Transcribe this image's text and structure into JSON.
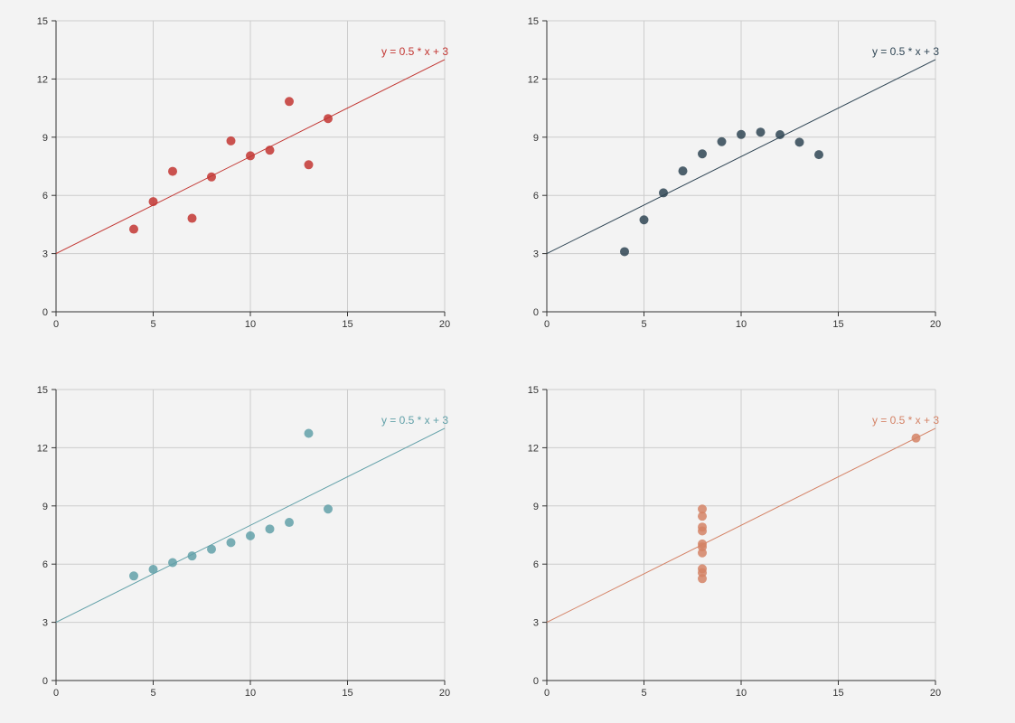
{
  "chart_data": [
    {
      "type": "scatter",
      "title": "",
      "xlabel": "",
      "ylabel": "",
      "xlim": [
        0,
        20
      ],
      "ylim": [
        0,
        15
      ],
      "xticks": [
        0,
        5,
        10,
        15,
        20
      ],
      "yticks": [
        0,
        3,
        6,
        9,
        12,
        15
      ],
      "grid": true,
      "color": "#c23531",
      "points": [
        [
          10,
          8.04
        ],
        [
          8,
          6.95
        ],
        [
          13,
          7.58
        ],
        [
          9,
          8.81
        ],
        [
          11,
          8.33
        ],
        [
          14,
          9.96
        ],
        [
          6,
          7.24
        ],
        [
          4,
          4.26
        ],
        [
          12,
          10.84
        ],
        [
          7,
          4.82
        ],
        [
          5,
          5.68
        ]
      ],
      "fit_line": {
        "slope": 0.5,
        "intercept": 3,
        "from": [
          0,
          3
        ],
        "to": [
          20,
          13
        ],
        "label": "y = 0.5 * x + 3"
      }
    },
    {
      "type": "scatter",
      "title": "",
      "xlabel": "",
      "ylabel": "",
      "xlim": [
        0,
        20
      ],
      "ylim": [
        0,
        15
      ],
      "xticks": [
        0,
        5,
        10,
        15,
        20
      ],
      "yticks": [
        0,
        3,
        6,
        9,
        12,
        15
      ],
      "grid": true,
      "color": "#2f4554",
      "points": [
        [
          10,
          9.14
        ],
        [
          8,
          8.14
        ],
        [
          13,
          8.74
        ],
        [
          9,
          8.77
        ],
        [
          11,
          9.26
        ],
        [
          14,
          8.1
        ],
        [
          6,
          6.13
        ],
        [
          4,
          3.1
        ],
        [
          12,
          9.13
        ],
        [
          7,
          7.26
        ],
        [
          5,
          4.74
        ]
      ],
      "fit_line": {
        "slope": 0.5,
        "intercept": 3,
        "from": [
          0,
          3
        ],
        "to": [
          20,
          13
        ],
        "label": "y = 0.5 * x + 3"
      }
    },
    {
      "type": "scatter",
      "title": "",
      "xlabel": "",
      "ylabel": "",
      "xlim": [
        0,
        20
      ],
      "ylim": [
        0,
        15
      ],
      "xticks": [
        0,
        5,
        10,
        15,
        20
      ],
      "yticks": [
        0,
        3,
        6,
        9,
        12,
        15
      ],
      "grid": true,
      "color": "#61a0a8",
      "points": [
        [
          10,
          7.46
        ],
        [
          8,
          6.77
        ],
        [
          13,
          12.74
        ],
        [
          9,
          7.11
        ],
        [
          11,
          7.81
        ],
        [
          14,
          8.84
        ],
        [
          6,
          6.08
        ],
        [
          4,
          5.39
        ],
        [
          12,
          8.15
        ],
        [
          7,
          6.42
        ],
        [
          5,
          5.73
        ]
      ],
      "fit_line": {
        "slope": 0.5,
        "intercept": 3,
        "from": [
          0,
          3
        ],
        "to": [
          20,
          13
        ],
        "label": "y = 0.5 * x + 3"
      }
    },
    {
      "type": "scatter",
      "title": "",
      "xlabel": "",
      "ylabel": "",
      "xlim": [
        0,
        20
      ],
      "ylim": [
        0,
        15
      ],
      "xticks": [
        0,
        5,
        10,
        15,
        20
      ],
      "yticks": [
        0,
        3,
        6,
        9,
        12,
        15
      ],
      "grid": true,
      "color": "#d48265",
      "points": [
        [
          8,
          6.58
        ],
        [
          8,
          5.76
        ],
        [
          8,
          7.71
        ],
        [
          8,
          8.84
        ],
        [
          8,
          8.47
        ],
        [
          8,
          7.04
        ],
        [
          8,
          5.25
        ],
        [
          19,
          12.5
        ],
        [
          8,
          5.56
        ],
        [
          8,
          7.91
        ],
        [
          8,
          6.89
        ]
      ],
      "fit_line": {
        "slope": 0.5,
        "intercept": 3,
        "from": [
          0,
          3
        ],
        "to": [
          20,
          13
        ],
        "label": "y = 0.5 * x + 3"
      }
    }
  ]
}
